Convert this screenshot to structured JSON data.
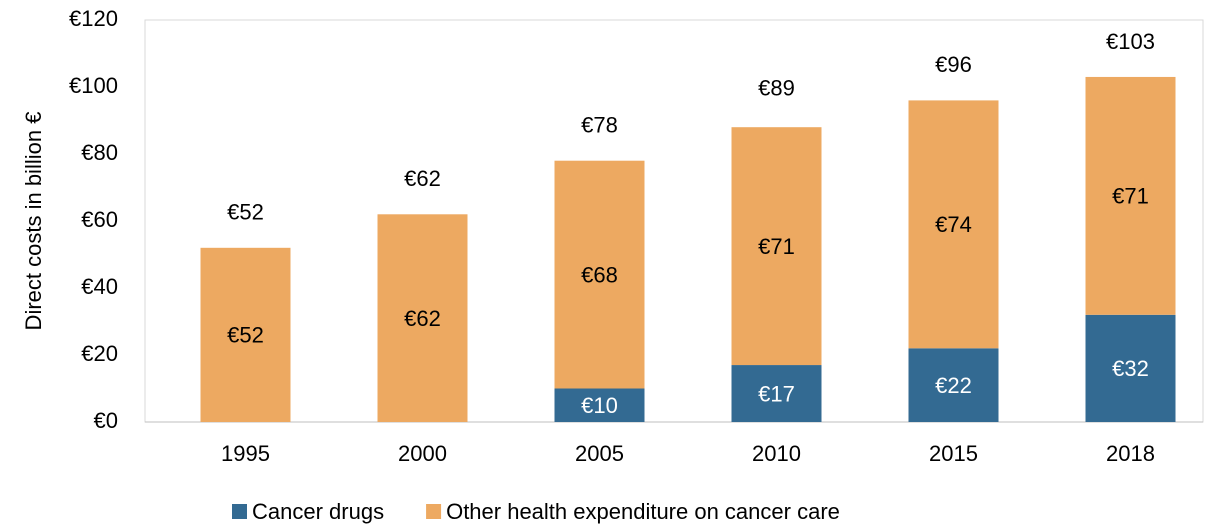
{
  "chart_data": {
    "type": "stacked_bar",
    "y_label": "Direct costs in billion €",
    "categories": [
      "1995",
      "2000",
      "2005",
      "2010",
      "2015",
      "2018"
    ],
    "series": [
      {
        "name": "Cancer drugs",
        "color": "#336a92",
        "label_color": "#ffffff",
        "values": [
          null,
          null,
          10,
          17,
          22,
          32
        ],
        "value_labels": [
          null,
          null,
          "€10",
          "€17",
          "€22",
          "€32"
        ]
      },
      {
        "name": "Other health expenditure on cancer care",
        "color": "#eda961",
        "label_color": "#000000",
        "values": [
          52,
          62,
          68,
          71,
          74,
          71
        ],
        "value_labels": [
          "€52",
          "€62",
          "€68",
          "€71",
          "€74",
          "€71"
        ]
      }
    ],
    "totals": {
      "values": [
        52,
        62,
        78,
        89,
        96,
        103
      ],
      "value_labels": [
        "€52",
        "€62",
        "€78",
        "€89",
        "€96",
        "€103"
      ]
    },
    "ylim": [
      0,
      120
    ],
    "yticks": [
      {
        "value": 0,
        "label": "€0"
      },
      {
        "value": 20,
        "label": "€20"
      },
      {
        "value": 40,
        "label": "€40"
      },
      {
        "value": 60,
        "label": "€60"
      },
      {
        "value": 80,
        "label": "€80"
      },
      {
        "value": 100,
        "label": "€100"
      },
      {
        "value": 120,
        "label": "€120"
      }
    ],
    "grid": false,
    "legend": "bottom"
  }
}
